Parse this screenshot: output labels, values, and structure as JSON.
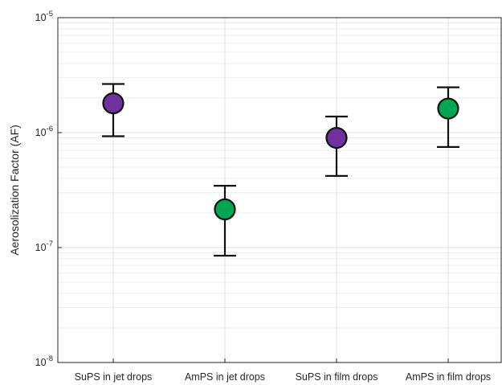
{
  "chart_data": {
    "type": "scatter",
    "title": "",
    "xlabel": "",
    "ylabel": "Aerosolization Factor (AF)",
    "yscale": "log",
    "ylim": [
      1e-08,
      1e-05
    ],
    "y_tick_labels": [
      {
        "base": "10",
        "exp": "-8",
        "value": 1e-08
      },
      {
        "base": "10",
        "exp": "-7",
        "value": 1e-07
      },
      {
        "base": "10",
        "exp": "-6",
        "value": 1e-06
      },
      {
        "base": "10",
        "exp": "-5",
        "value": 1e-05
      }
    ],
    "categories": [
      "SuPS in jet drops",
      "AmPS in jet drops",
      "SuPS in film drops",
      "AmPS in film drops"
    ],
    "points": [
      {
        "category": "SuPS in jet drops",
        "y": 1.8e-06,
        "err_low": 9.3e-07,
        "err_high": 2.65e-06,
        "color": "#7030a0"
      },
      {
        "category": "AmPS in jet drops",
        "y": 2.15e-07,
        "err_low": 8.5e-08,
        "err_high": 3.45e-07,
        "color": "#00a651"
      },
      {
        "category": "SuPS in film drops",
        "y": 9e-07,
        "err_low": 4.2e-07,
        "err_high": 1.38e-06,
        "color": "#7030a0"
      },
      {
        "category": "AmPS in film drops",
        "y": 1.62e-06,
        "err_low": 7.5e-07,
        "err_high": 2.48e-06,
        "color": "#00a651"
      }
    ],
    "grid": true,
    "legend": "none"
  }
}
